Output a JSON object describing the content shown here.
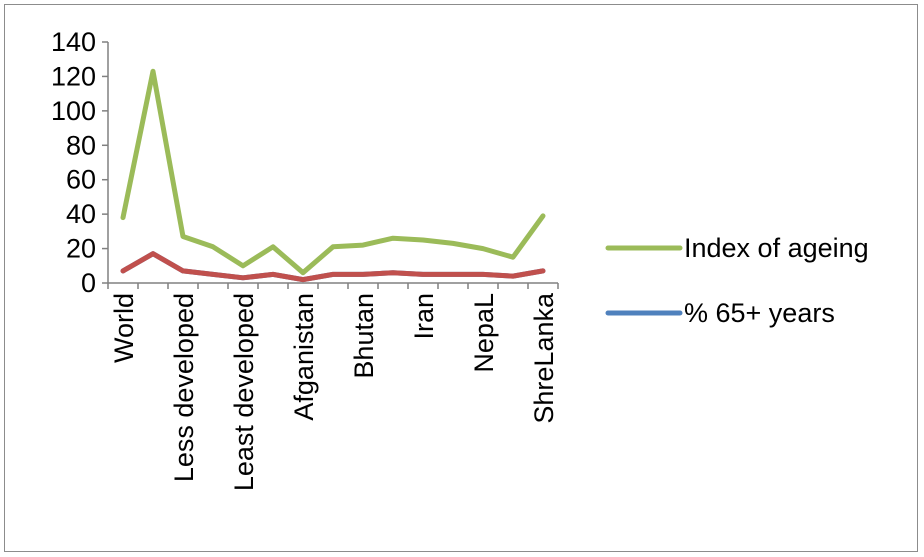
{
  "chart_data": {
    "type": "line",
    "categories": [
      "World",
      "",
      "Less developed",
      "",
      "Least developed",
      "",
      "Afganistan",
      "",
      "Bhutan",
      "",
      "Iran",
      "",
      "NepaL",
      "",
      "ShreLanka"
    ],
    "series": [
      {
        "name": "Index of ageing",
        "color": "#9bbb59",
        "values": [
          38,
          123,
          27,
          21,
          10,
          21,
          6,
          21,
          22,
          26,
          25,
          23,
          20,
          15,
          39
        ]
      },
      {
        "name": "% 65+ years",
        "color": "#4f81bd",
        "values": [
          7,
          17,
          7,
          5,
          3,
          5,
          2,
          5,
          5,
          6,
          5,
          5,
          5,
          4,
          7
        ]
      }
    ],
    "overlay_color": "#c0504d",
    "yticks": [
      0,
      20,
      40,
      60,
      80,
      100,
      120,
      140
    ],
    "ylim": [
      0,
      140
    ],
    "grid": false,
    "legend_position": "right"
  }
}
